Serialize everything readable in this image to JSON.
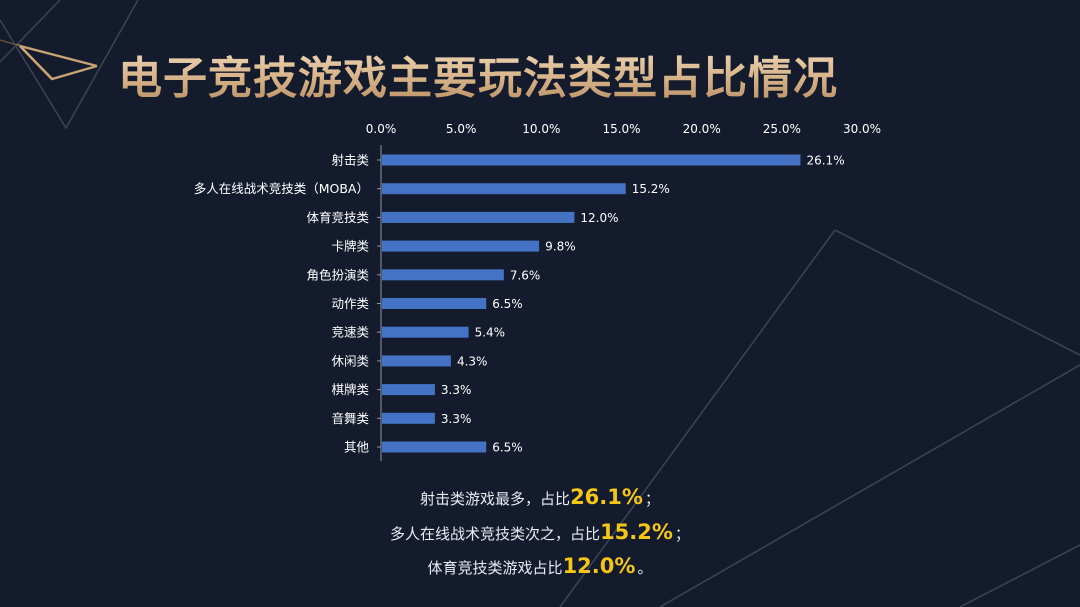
{
  "title": "电子竞技游戏主要玩法类型占比情况",
  "colors": {
    "bar": "#4472c4",
    "background": "#141b2c",
    "title_gold": "#e3c7a0",
    "highlight": "#f5c518",
    "text": "#ffffff"
  },
  "chart_data": {
    "type": "bar",
    "orientation": "horizontal",
    "categories": [
      "射击类",
      "多人在线战术竞技类（MOBA）",
      "体育竞技类",
      "卡牌类",
      "角色扮演类",
      "动作类",
      "竞速类",
      "休闲类",
      "棋牌类",
      "音舞类",
      "其他"
    ],
    "values": [
      26.1,
      15.2,
      12.0,
      9.8,
      7.6,
      6.5,
      5.4,
      4.3,
      3.3,
      3.3,
      6.5
    ],
    "value_labels": [
      "26.1%",
      "15.2%",
      "12.0%",
      "9.8%",
      "7.6%",
      "6.5%",
      "5.4%",
      "4.3%",
      "3.3%",
      "3.3%",
      "6.5%"
    ],
    "xlim": [
      0,
      30
    ],
    "x_ticks": [
      "0.0%",
      "5.0%",
      "10.0%",
      "15.0%",
      "20.0%",
      "25.0%",
      "30.0%"
    ],
    "x_axis_position": "top",
    "grid": false,
    "legend": "none",
    "unit": "%"
  },
  "summary": [
    {
      "prefix": "射击类游戏最多，占比",
      "value": "26.1%",
      "suffix": "；"
    },
    {
      "prefix": "多人在线战术竞技类次之，占比",
      "value": "15.2%",
      "suffix": "；"
    },
    {
      "prefix": "体育竞技类游戏占比",
      "value": "12.0%",
      "suffix": "。"
    }
  ]
}
